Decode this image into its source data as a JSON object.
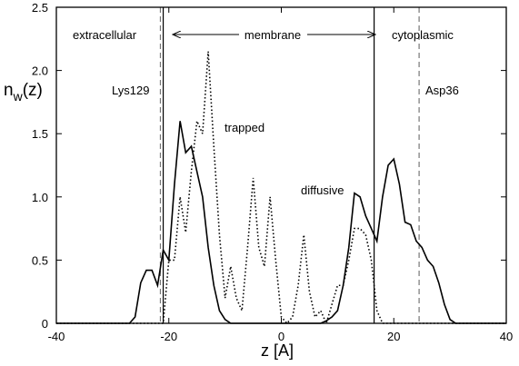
{
  "chart_data": {
    "type": "line",
    "xlabel": "z [A]",
    "ylabel": {
      "base": "n",
      "sub": "w",
      "rest": "(z)"
    },
    "x": [
      -40,
      -39,
      -38,
      -37,
      -36,
      -35,
      -34,
      -33,
      -32,
      -31,
      -30,
      -29,
      -28,
      -27,
      -26,
      -25,
      -24,
      -23,
      -22,
      -21,
      -20,
      -19,
      -18,
      -17,
      -16,
      -15,
      -14,
      -13,
      -12,
      -11,
      -10,
      -9,
      -8,
      -7,
      -6,
      -5,
      -4,
      -3,
      -2,
      -1,
      0,
      1,
      2,
      3,
      4,
      5,
      6,
      7,
      8,
      9,
      10,
      11,
      12,
      13,
      14,
      15,
      16,
      17,
      18,
      19,
      20,
      21,
      22,
      23,
      24,
      25,
      26,
      27,
      28,
      29,
      30,
      31,
      32,
      33,
      34,
      35,
      36,
      37,
      38,
      39,
      40
    ],
    "series": [
      {
        "name": "trapped",
        "color": "#000000",
        "dash": "dotted",
        "values": [
          0,
          0,
          0,
          0,
          0,
          0,
          0,
          0,
          0,
          0,
          0,
          0,
          0,
          0,
          0,
          0,
          0,
          0,
          0,
          0,
          0.5,
          0.5,
          1.0,
          0.72,
          1.2,
          1.6,
          1.5,
          2.15,
          1.4,
          0.7,
          0.2,
          0.45,
          0.2,
          0.1,
          0.6,
          1.15,
          0.6,
          0.45,
          1.0,
          0.5,
          0.05,
          0,
          0.05,
          0.3,
          0.7,
          0.25,
          0.05,
          0.1,
          0,
          0.15,
          0.3,
          0.3,
          0.5,
          0.75,
          0.75,
          0.7,
          0.5,
          0.1,
          0,
          0,
          0,
          0,
          0,
          0,
          0,
          0,
          0,
          0,
          0,
          0,
          0,
          0,
          0,
          0,
          0,
          0,
          0,
          0,
          0,
          0,
          0
        ]
      },
      {
        "name": "diffusive",
        "color": "#000000",
        "dash": "solid",
        "values": [
          0,
          0,
          0,
          0,
          0,
          0,
          0,
          0,
          0,
          0,
          0,
          0,
          0,
          0,
          0.05,
          0.32,
          0.42,
          0.42,
          0.3,
          0.58,
          0.5,
          1.1,
          1.6,
          1.35,
          1.4,
          1.2,
          1.0,
          0.6,
          0.3,
          0.1,
          0.03,
          0,
          0,
          0,
          0,
          0,
          0,
          0,
          0,
          0,
          0,
          0,
          0,
          0,
          0,
          0,
          0,
          0,
          0.02,
          0.05,
          0.1,
          0.3,
          0.6,
          1.03,
          1.0,
          0.85,
          0.75,
          0.65,
          1.0,
          1.25,
          1.3,
          1.1,
          0.8,
          0.78,
          0.65,
          0.6,
          0.5,
          0.45,
          0.32,
          0.15,
          0.03,
          0,
          0,
          0,
          0,
          0,
          0,
          0,
          0,
          0,
          0
        ]
      }
    ],
    "vlines": [
      {
        "x": -21.5,
        "style": "dashed",
        "color": "#777777"
      },
      {
        "x": -21,
        "style": "solid",
        "color": "#000000"
      },
      {
        "x": 16.5,
        "style": "solid",
        "color": "#000000"
      },
      {
        "x": 24.5,
        "style": "dashed",
        "color": "#777777"
      }
    ],
    "annotations": [
      "extracellular",
      "membrane",
      "cytoplasmic",
      "Lys129",
      "Asp36"
    ],
    "xlim": [
      -40,
      40
    ],
    "xticks": [
      -40,
      -20,
      0,
      20,
      40
    ],
    "ylim": [
      0,
      2.5
    ],
    "yticks": [
      0,
      0.5,
      {
        "value": 1,
        "label": "1.0"
      },
      1.5,
      {
        "value": 2,
        "label": "2.0"
      },
      2.5
    ],
    "grid": false
  }
}
